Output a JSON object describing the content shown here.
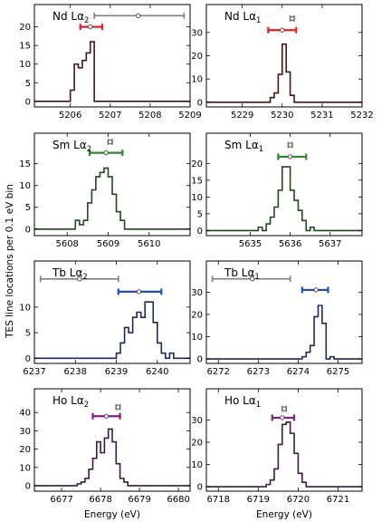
{
  "figure": {
    "ylabel": "TES line locations per 0.1 eV bin",
    "xlabel": "Energy (eV)"
  },
  "chart_data": [
    {
      "type": "histogram",
      "element": "Nd",
      "title_prefix": "Nd L",
      "title_greek": "α",
      "title_sub": "2",
      "color": "#4a1414",
      "xlim": [
        5205.1,
        5209.0
      ],
      "xticks": [
        5206,
        5207,
        5208,
        5209
      ],
      "ylim": [
        -1.5,
        26
      ],
      "yticks": [
        0,
        5,
        10,
        15,
        20
      ],
      "bins": {
        "start": 5205.9,
        "width": 0.1,
        "counts": [
          0,
          3,
          10,
          9,
          11,
          13,
          16,
          0
        ]
      },
      "measurement": {
        "x": 5206.5,
        "xerr": [
          5206.25,
          5206.8
        ],
        "y": 20,
        "color": "#ee1c1c"
      },
      "reference": {
        "x": 5207.7,
        "xerr": [
          5206.6,
          5208.85
        ],
        "y": 23,
        "color": "#808080"
      }
    },
    {
      "type": "histogram",
      "element": "Nd",
      "title_prefix": "Nd L",
      "title_greek": "α",
      "title_sub": "1",
      "color": "#4a1414",
      "xlim": [
        5228.1,
        5232.0
      ],
      "xticks": [
        5229,
        5230,
        5231,
        5232
      ],
      "ylim": [
        -2,
        42
      ],
      "yticks": [
        0,
        10,
        20,
        30
      ],
      "bins": {
        "start": 5229.6,
        "width": 0.1,
        "counts": [
          0,
          2,
          4,
          12,
          25,
          13,
          3,
          0
        ]
      },
      "measurement": {
        "x": 5230.0,
        "xerr": [
          5229.65,
          5230.35
        ],
        "y": 31,
        "color": "#ee1c1c"
      },
      "reference": {
        "x": 5230.25,
        "xerr": [
          5230.2,
          5230.3
        ],
        "y": 36,
        "color": "#808080"
      }
    },
    {
      "type": "histogram",
      "element": "Sm",
      "title_prefix": "Sm L",
      "title_greek": "α",
      "title_sub": "2",
      "color": "#1f4a1f",
      "xlim": [
        5607.2,
        5611.0
      ],
      "xticks": [
        5608,
        5609,
        5610
      ],
      "ylim": [
        -1.5,
        22
      ],
      "yticks": [
        0,
        5,
        10,
        15
      ],
      "bins": {
        "start": 5608.1,
        "width": 0.1,
        "counts": [
          0,
          2,
          1,
          2,
          6,
          9,
          12,
          13,
          14,
          12,
          8,
          4,
          2,
          0
        ]
      },
      "measurement": {
        "x": 5608.95,
        "xerr": [
          5608.55,
          5609.35
        ],
        "y": 17.5,
        "color": "#2a8a2a"
      },
      "reference": {
        "x": 5609.05,
        "xerr": [
          5609.0,
          5609.1
        ],
        "y": 20,
        "color": "#808080"
      }
    },
    {
      "type": "histogram",
      "element": "Sm",
      "title_prefix": "Sm L",
      "title_greek": "α",
      "title_sub": "1",
      "color": "#1f4a1f",
      "xlim": [
        5633.9,
        5637.8
      ],
      "xticks": [
        5635,
        5636,
        5637
      ],
      "ylim": [
        -1.5,
        29
      ],
      "yticks": [
        0,
        5,
        10,
        15,
        20
      ],
      "bins": {
        "start": 5635.1,
        "width": 0.1,
        "counts": [
          0,
          1,
          0,
          2,
          4,
          7,
          12,
          19,
          19,
          12,
          9,
          6,
          3,
          0,
          1,
          0
        ]
      },
      "measurement": {
        "x": 5636.0,
        "xerr": [
          5635.7,
          5636.4
        ],
        "y": 22,
        "color": "#2a8a2a"
      },
      "reference": {
        "x": 5636.0,
        "xerr": [
          5635.95,
          5636.05
        ],
        "y": 25.5,
        "color": "#808080"
      }
    },
    {
      "type": "histogram",
      "element": "Tb",
      "title_prefix": "Tb L",
      "title_greek": "α",
      "title_sub": "2",
      "color": "#1e2a5e",
      "xlim": [
        6237.0,
        6240.8
      ],
      "xticks": [
        6237,
        6238,
        6239,
        6240
      ],
      "ylim": [
        -1,
        19
      ],
      "yticks": [
        0,
        5,
        10
      ],
      "bins": {
        "start": 6238.9,
        "width": 0.1,
        "counts": [
          0,
          1,
          3,
          6,
          5,
          8,
          9,
          8,
          11,
          11,
          7,
          3,
          1,
          0,
          1,
          0
        ]
      },
      "measurement": {
        "x": 6239.55,
        "xerr": [
          6239.05,
          6240.1
        ],
        "y": 13,
        "color": "#1a4ae6"
      },
      "reference": {
        "x": 6238.1,
        "xerr": [
          6237.15,
          6239.05
        ],
        "y": 15.5,
        "color": "#808080"
      }
    },
    {
      "type": "histogram",
      "element": "Tb",
      "title_prefix": "Tb L",
      "title_greek": "α",
      "title_sub": "1",
      "color": "#1e2a5e",
      "xlim": [
        6271.7,
        6275.6
      ],
      "xticks": [
        6272,
        6273,
        6274,
        6275
      ],
      "ylim": [
        -2,
        44
      ],
      "yticks": [
        0,
        10,
        20,
        30
      ],
      "bins": {
        "start": 6274.1,
        "width": 0.1,
        "counts": [
          1,
          3,
          6,
          19,
          24,
          16,
          0,
          1,
          0
        ]
      },
      "measurement": {
        "x": 6274.45,
        "xerr": [
          6274.1,
          6274.75
        ],
        "y": 31,
        "color": "#1a4ae6"
      },
      "reference": {
        "x": 6272.85,
        "xerr": [
          6271.85,
          6273.8
        ],
        "y": 36,
        "color": "#808080"
      }
    },
    {
      "type": "histogram",
      "element": "Ho",
      "title_prefix": "Ho L",
      "title_greek": "α",
      "title_sub": "2",
      "color": "#3a1a4a",
      "xlim": [
        6676.3,
        6680.3
      ],
      "xticks": [
        6677,
        6678,
        6679,
        6680
      ],
      "ylim": [
        -3,
        53
      ],
      "yticks": [
        0,
        10,
        20,
        30,
        40
      ],
      "bins": {
        "start": 6677.3,
        "width": 0.1,
        "counts": [
          0,
          1,
          2,
          4,
          9,
          15,
          24,
          18,
          26,
          31,
          24,
          12,
          4,
          2,
          0
        ]
      },
      "measurement": {
        "x": 6678.15,
        "xerr": [
          6677.8,
          6678.5
        ],
        "y": 38,
        "color": "#8a1a8a"
      },
      "reference": {
        "x": 6678.45,
        "xerr": [
          6678.4,
          6678.5
        ],
        "y": 43,
        "color": "#808080"
      }
    },
    {
      "type": "histogram",
      "element": "Ho",
      "title_prefix": "Ho L",
      "title_greek": "α",
      "title_sub": "1",
      "color": "#3a1a4a",
      "xlim": [
        6717.7,
        6721.6
      ],
      "xticks": [
        6718,
        6719,
        6720,
        6721
      ],
      "ylim": [
        -2,
        44
      ],
      "yticks": [
        0,
        10,
        20,
        30
      ],
      "bins": {
        "start": 6719.1,
        "width": 0.1,
        "counts": [
          0,
          1,
          3,
          8,
          19,
          28,
          29,
          24,
          15,
          6,
          2,
          0
        ]
      },
      "measurement": {
        "x": 6719.6,
        "xerr": [
          6719.35,
          6719.9
        ],
        "y": 31,
        "color": "#8a1a8a"
      },
      "reference": {
        "x": 6719.65,
        "xerr": [
          6719.6,
          6719.7
        ],
        "y": 35,
        "color": "#808080"
      }
    }
  ]
}
